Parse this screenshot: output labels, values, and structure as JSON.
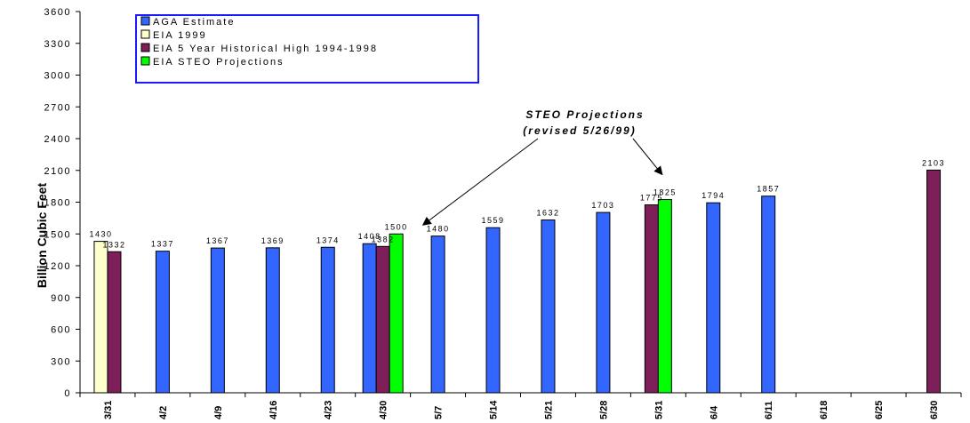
{
  "chart_data": {
    "type": "bar",
    "title": "",
    "ylabel": "Billion Cubic Feet",
    "ylim": [
      0,
      3600
    ],
    "yticks": [
      "0",
      "300",
      "600",
      "900",
      "1200",
      "1500",
      "1800",
      "2100",
      "2400",
      "2700",
      "3000",
      "3300",
      "3600"
    ],
    "grid": false,
    "legend_position": "top-left",
    "categories": [
      "3/31",
      "4/2",
      "4/9",
      "4/16",
      "4/23",
      "4/30",
      "5/7",
      "5/14",
      "5/21",
      "5/28",
      "5/31",
      "6/4",
      "6/11",
      "6/18",
      "6/25",
      "6/30"
    ],
    "series": [
      {
        "name": "AGA Estimate",
        "color": "#3366ff"
      },
      {
        "name": "EIA 1999",
        "color": "#ffffcc"
      },
      {
        "name": "EIA 5 Year Historical High 1994-1998",
        "color": "#7f1f5a"
      },
      {
        "name": "EIA STEO Projections",
        "color": "#00ff00"
      }
    ],
    "bars": [
      {
        "category": "3/31",
        "series": "EIA 1999",
        "value": 1430,
        "label": "1430"
      },
      {
        "category": "3/31",
        "series": "EIA 5 Year Historical High 1994-1998",
        "value": 1332,
        "label": "1332"
      },
      {
        "category": "4/2",
        "series": "AGA Estimate",
        "value": 1337,
        "label": "1337"
      },
      {
        "category": "4/9",
        "series": "AGA Estimate",
        "value": 1367,
        "label": "1367"
      },
      {
        "category": "4/16",
        "series": "AGA Estimate",
        "value": 1369,
        "label": "1369"
      },
      {
        "category": "4/23",
        "series": "AGA Estimate",
        "value": 1374,
        "label": "1374"
      },
      {
        "category": "4/30",
        "series": "AGA Estimate",
        "value": 1408,
        "label": "1408"
      },
      {
        "category": "4/30",
        "series": "EIA 5 Year Historical High 1994-1998",
        "value": 1382,
        "label": "1382"
      },
      {
        "category": "4/30",
        "series": "EIA STEO Projections",
        "value": 1500,
        "label": "1500"
      },
      {
        "category": "5/7",
        "series": "AGA Estimate",
        "value": 1480,
        "label": "1480"
      },
      {
        "category": "5/14",
        "series": "AGA Estimate",
        "value": 1559,
        "label": "1559"
      },
      {
        "category": "5/21",
        "series": "AGA Estimate",
        "value": 1632,
        "label": "1632"
      },
      {
        "category": "5/28",
        "series": "AGA Estimate",
        "value": 1703,
        "label": "1703"
      },
      {
        "category": "5/31",
        "series": "EIA 5 Year Historical High 1994-1998",
        "value": 1775,
        "label": "1775"
      },
      {
        "category": "5/31",
        "series": "EIA STEO Projections",
        "value": 1825,
        "label": "1825"
      },
      {
        "category": "6/4",
        "series": "AGA Estimate",
        "value": 1794,
        "label": "1794"
      },
      {
        "category": "6/11",
        "series": "AGA Estimate",
        "value": 1857,
        "label": "1857"
      },
      {
        "category": "6/30",
        "series": "EIA 5 Year Historical High 1994-1998",
        "value": 2103,
        "label": "2103"
      }
    ],
    "annotation": {
      "lines": [
        "STEO Projections",
        "(revised 5/26/99)"
      ],
      "points_to": [
        "4/30 EIA STEO Projections",
        "5/31 EIA STEO Projections"
      ]
    }
  }
}
